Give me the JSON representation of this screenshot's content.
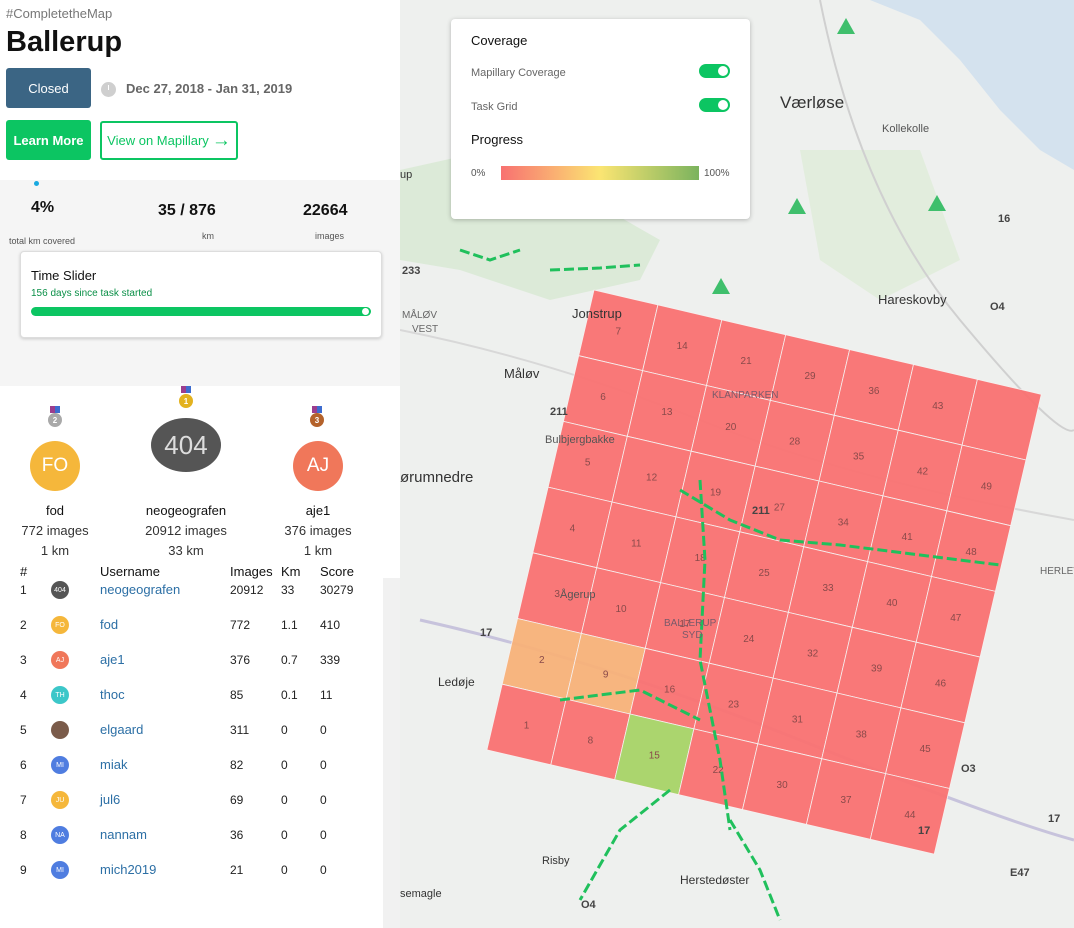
{
  "sidebar": {
    "hashtag": "#CompletetheMap",
    "title": "Ballerup",
    "status_button": "Closed",
    "dates": "Dec 27, 2018 - Jan 31, 2019",
    "learn_more": "Learn More",
    "view_on_mapillary": "View on Mapillary",
    "arrow": "→"
  },
  "stats": {
    "percent": "4%",
    "percent_label": "total km covered",
    "km": "35 / 876",
    "km_label": "km",
    "images": "22664",
    "images_label": "images"
  },
  "time_slider": {
    "title": "Time Slider",
    "subtitle": "156 days since task started",
    "progress": 1.0
  },
  "podium": [
    {
      "rank": "2",
      "initials": "FO",
      "name": "fod",
      "images": "772 images",
      "km": "1 km",
      "color": "#f5b73b"
    },
    {
      "rank": "1",
      "initials": "404",
      "name": "neogeografen",
      "images": "20912 images",
      "km": "33 km",
      "color": "#555555"
    },
    {
      "rank": "3",
      "initials": "AJ",
      "name": "aje1",
      "images": "376 images",
      "km": "1 km",
      "color": "#f0775a"
    }
  ],
  "leaderboard": {
    "headers": {
      "rank": "#",
      "username": "Username",
      "images": "Images",
      "km": "Km",
      "score": "Score"
    },
    "rows": [
      {
        "rank": "1",
        "initials": "404",
        "color": "#555555",
        "user": "neogeografen",
        "images": "20912",
        "km": "33",
        "score": "30279"
      },
      {
        "rank": "2",
        "initials": "FO",
        "color": "#f5b73b",
        "user": "fod",
        "images": "772",
        "km": "1.1",
        "score": "410"
      },
      {
        "rank": "3",
        "initials": "AJ",
        "color": "#f0775a",
        "user": "aje1",
        "images": "376",
        "km": "0.7",
        "score": "339"
      },
      {
        "rank": "4",
        "initials": "TH",
        "color": "#3cc7c9",
        "user": "thoc",
        "images": "85",
        "km": "0.1",
        "score": "11"
      },
      {
        "rank": "5",
        "initials": "",
        "color": "#7a5b4a",
        "user": "elgaard",
        "images": "311",
        "km": "0",
        "score": "0"
      },
      {
        "rank": "6",
        "initials": "MI",
        "color": "#4f7de0",
        "user": "miak",
        "images": "82",
        "km": "0",
        "score": "0"
      },
      {
        "rank": "7",
        "initials": "JU",
        "color": "#f5b73b",
        "user": "jul6",
        "images": "69",
        "km": "0",
        "score": "0"
      },
      {
        "rank": "8",
        "initials": "NA",
        "color": "#4f7de0",
        "user": "nannam",
        "images": "36",
        "km": "0",
        "score": "0"
      },
      {
        "rank": "9",
        "initials": "MI",
        "color": "#4f7de0",
        "user": "mich2019",
        "images": "21",
        "km": "0",
        "score": "0"
      }
    ]
  },
  "panel": {
    "coverage_heading": "Coverage",
    "mapillary_coverage": "Mapillary Coverage",
    "task_grid": "Task Grid",
    "progress_heading": "Progress",
    "min": "0%",
    "max": "100%"
  },
  "map": {
    "places": [
      "Værløse",
      "Kollekolle",
      "Jonstrup",
      "MÅLØV",
      "VEST",
      "Måløv",
      "KLANPARKEN",
      "Bulbjergbakke",
      "Hareskovby",
      "ørumnedre",
      "Ågerup",
      "BALLERUP",
      "SYD",
      "Ledøje",
      "Risby",
      "Herstedøster",
      "semagle",
      "HERLEV",
      "Kollekolle",
      "up"
    ],
    "roads": [
      "211",
      "233",
      "16",
      "O4",
      "17",
      "O3",
      "211",
      "17",
      "O4",
      "17",
      "E47"
    ],
    "cell_numbers": [
      "1",
      "2",
      "3",
      "4",
      "5",
      "6",
      "7",
      "8",
      "9",
      "10",
      "11",
      "12",
      "13",
      "14",
      "15",
      "16",
      "17",
      "18",
      "19",
      "20",
      "21",
      "22",
      "23",
      "24",
      "25",
      "27",
      "28",
      "29",
      "30",
      "31",
      "32",
      "33",
      "34",
      "35",
      "36",
      "37",
      "38",
      "39",
      "40",
      "41",
      "42",
      "43",
      "44",
      "45",
      "46",
      "47",
      "48",
      "49"
    ]
  }
}
